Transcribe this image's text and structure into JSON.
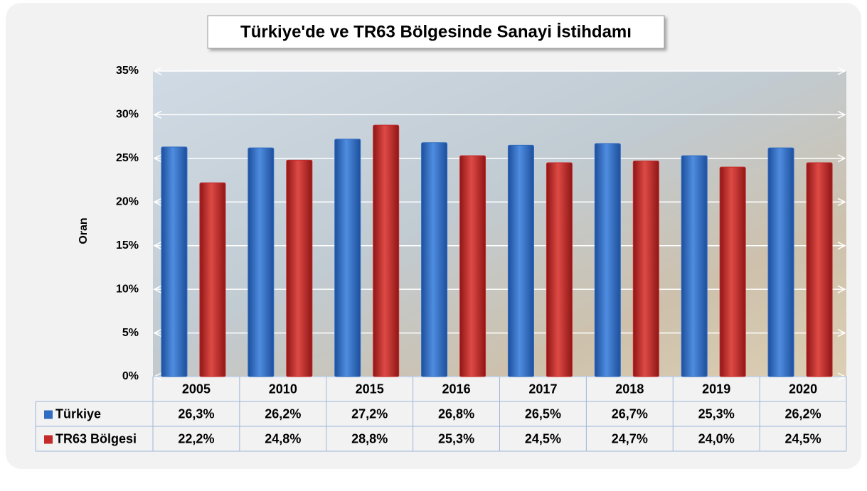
{
  "chart_data": {
    "type": "bar",
    "title": "Türkiye'de ve TR63 Bölgesinde Sanayi İstihdamı",
    "y_label": "Oran",
    "categories": [
      "2005",
      "2010",
      "2015",
      "2016",
      "2017",
      "2018",
      "2019",
      "2020"
    ],
    "series": [
      {
        "name": "Türkiye",
        "color": "#2f6cc2",
        "values": [
          26.3,
          26.2,
          27.2,
          26.8,
          26.5,
          26.7,
          25.3,
          26.2
        ],
        "value_labels": [
          "26,3%",
          "26,2%",
          "27,2%",
          "26,8%",
          "26,5%",
          "26,7%",
          "25,3%",
          "26,2%"
        ]
      },
      {
        "name": "TR63 Bölgesi",
        "color": "#c42a2a",
        "values": [
          22.2,
          24.8,
          28.8,
          25.3,
          24.5,
          24.7,
          24.0,
          24.5
        ],
        "value_labels": [
          "22,2%",
          "24,8%",
          "28,8%",
          "25,3%",
          "24,5%",
          "24,7%",
          "24,0%",
          "24,5%"
        ]
      }
    ],
    "ylim": [
      0,
      35
    ],
    "yticks": [
      {
        "value": 0,
        "label": "0%"
      },
      {
        "value": 5,
        "label": "5%"
      },
      {
        "value": 10,
        "label": "10%"
      },
      {
        "value": 15,
        "label": "15%"
      },
      {
        "value": 20,
        "label": "20%"
      },
      {
        "value": 25,
        "label": "25%"
      },
      {
        "value": 30,
        "label": "30%"
      },
      {
        "value": 35,
        "label": "35%"
      }
    ],
    "grid": true,
    "data_table": true
  }
}
